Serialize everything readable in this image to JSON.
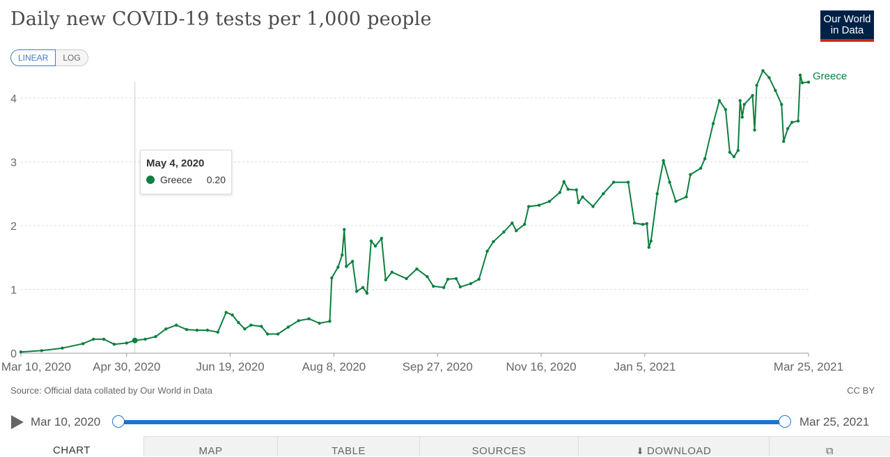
{
  "header": {
    "title": "Daily new COVID-19 tests per 1,000 people",
    "logo_line1": "Our World",
    "logo_line2": "in Data"
  },
  "scale_toggle": {
    "linear_label": "LINEAR",
    "log_label": "LOG",
    "selected": "LINEAR"
  },
  "tooltip": {
    "date": "May 4, 2020",
    "series": "Greece",
    "value": "0.20"
  },
  "footer": {
    "source": "Source: Official data collated by Our World in Data",
    "license": "CC BY"
  },
  "timeline": {
    "start_label": "Mar 10, 2020",
    "end_label": "Mar 25, 2021"
  },
  "tabs": {
    "chart": "CHART",
    "map": "MAP",
    "table": "TABLE",
    "sources": "SOURCES",
    "download": "DOWNLOAD"
  },
  "icons": {
    "play": "play-icon",
    "download": "download-icon",
    "share": "share-icon"
  },
  "colors": {
    "series": "#0d7f3f",
    "accent": "#1a73d1",
    "logo_bg": "#002147",
    "logo_bar": "#ce261e"
  },
  "chart_data": {
    "type": "line",
    "title": "Daily new COVID-19 tests per 1,000 people",
    "xlabel": "",
    "ylabel": "",
    "x_domain": [
      "2020-03-10",
      "2021-03-25"
    ],
    "ylim": [
      0,
      4.5
    ],
    "yticks": [
      0,
      1,
      2,
      3,
      4
    ],
    "xticks": [
      {
        "date": "2020-03-10",
        "label": "Mar 10, 2020"
      },
      {
        "date": "2020-04-30",
        "label": "Apr 30, 2020"
      },
      {
        "date": "2020-06-19",
        "label": "Jun 19, 2020"
      },
      {
        "date": "2020-08-08",
        "label": "Aug 8, 2020"
      },
      {
        "date": "2020-09-27",
        "label": "Sep 27, 2020"
      },
      {
        "date": "2020-11-16",
        "label": "Nov 16, 2020"
      },
      {
        "date": "2021-01-05",
        "label": "Jan 5, 2021"
      },
      {
        "date": "2021-03-25",
        "label": "Mar 25, 2021"
      }
    ],
    "grid": "horizontal-dashed",
    "hover_date": "2020-05-04",
    "series": [
      {
        "name": "Greece",
        "points": [
          [
            "2020-03-10",
            0.02
          ],
          [
            "2020-03-20",
            0.04
          ],
          [
            "2020-03-30",
            0.08
          ],
          [
            "2020-04-09",
            0.15
          ],
          [
            "2020-04-14",
            0.22
          ],
          [
            "2020-04-19",
            0.22
          ],
          [
            "2020-04-24",
            0.14
          ],
          [
            "2020-04-30",
            0.16
          ],
          [
            "2020-05-04",
            0.2
          ],
          [
            "2020-05-09",
            0.22
          ],
          [
            "2020-05-14",
            0.26
          ],
          [
            "2020-05-19",
            0.38
          ],
          [
            "2020-05-24",
            0.44
          ],
          [
            "2020-05-29",
            0.37
          ],
          [
            "2020-06-03",
            0.36
          ],
          [
            "2020-06-08",
            0.36
          ],
          [
            "2020-06-13",
            0.33
          ],
          [
            "2020-06-17",
            0.64
          ],
          [
            "2020-06-20",
            0.6
          ],
          [
            "2020-06-23",
            0.48
          ],
          [
            "2020-06-26",
            0.38
          ],
          [
            "2020-06-29",
            0.44
          ],
          [
            "2020-07-04",
            0.42
          ],
          [
            "2020-07-07",
            0.3
          ],
          [
            "2020-07-12",
            0.3
          ],
          [
            "2020-07-17",
            0.41
          ],
          [
            "2020-07-22",
            0.51
          ],
          [
            "2020-07-27",
            0.54
          ],
          [
            "2020-08-01",
            0.47
          ],
          [
            "2020-08-06",
            0.5
          ],
          [
            "2020-08-07",
            1.18
          ],
          [
            "2020-08-10",
            1.35
          ],
          [
            "2020-08-12",
            1.54
          ],
          [
            "2020-08-13",
            1.94
          ],
          [
            "2020-08-14",
            1.36
          ],
          [
            "2020-08-17",
            1.44
          ],
          [
            "2020-08-19",
            0.97
          ],
          [
            "2020-08-22",
            1.03
          ],
          [
            "2020-08-24",
            0.94
          ],
          [
            "2020-08-26",
            1.76
          ],
          [
            "2020-08-28",
            1.68
          ],
          [
            "2020-08-31",
            1.8
          ],
          [
            "2020-09-02",
            1.15
          ],
          [
            "2020-09-05",
            1.27
          ],
          [
            "2020-09-12",
            1.17
          ],
          [
            "2020-09-17",
            1.32
          ],
          [
            "2020-09-22",
            1.2
          ],
          [
            "2020-09-25",
            1.05
          ],
          [
            "2020-09-30",
            1.03
          ],
          [
            "2020-10-02",
            1.16
          ],
          [
            "2020-10-06",
            1.17
          ],
          [
            "2020-10-08",
            1.04
          ],
          [
            "2020-10-13",
            1.09
          ],
          [
            "2020-10-17",
            1.16
          ],
          [
            "2020-10-21",
            1.6
          ],
          [
            "2020-10-24",
            1.75
          ],
          [
            "2020-10-29",
            1.9
          ],
          [
            "2020-11-02",
            2.04
          ],
          [
            "2020-11-04",
            1.92
          ],
          [
            "2020-11-08",
            2.02
          ],
          [
            "2020-11-10",
            2.3
          ],
          [
            "2020-11-15",
            2.32
          ],
          [
            "2020-11-20",
            2.38
          ],
          [
            "2020-11-25",
            2.52
          ],
          [
            "2020-11-27",
            2.69
          ],
          [
            "2020-11-29",
            2.57
          ],
          [
            "2020-12-03",
            2.56
          ],
          [
            "2020-12-04",
            2.36
          ],
          [
            "2020-12-06",
            2.45
          ],
          [
            "2020-12-11",
            2.3
          ],
          [
            "2020-12-16",
            2.5
          ],
          [
            "2020-12-21",
            2.68
          ],
          [
            "2020-12-28",
            2.68
          ],
          [
            "2020-12-31",
            2.04
          ],
          [
            "2021-01-04",
            2.02
          ],
          [
            "2021-01-06",
            2.03
          ],
          [
            "2021-01-07",
            1.66
          ],
          [
            "2021-01-08",
            1.76
          ],
          [
            "2021-01-11",
            2.5
          ],
          [
            "2021-01-14",
            3.02
          ],
          [
            "2021-01-17",
            2.68
          ],
          [
            "2021-01-20",
            2.38
          ],
          [
            "2021-01-25",
            2.45
          ],
          [
            "2021-01-27",
            2.8
          ],
          [
            "2021-02-01",
            2.9
          ],
          [
            "2021-02-03",
            3.05
          ],
          [
            "2021-02-07",
            3.6
          ],
          [
            "2021-02-10",
            3.96
          ],
          [
            "2021-02-13",
            3.82
          ],
          [
            "2021-02-15",
            3.15
          ],
          [
            "2021-02-17",
            3.08
          ],
          [
            "2021-02-19",
            3.18
          ],
          [
            "2021-02-20",
            3.96
          ],
          [
            "2021-02-21",
            3.7
          ],
          [
            "2021-02-22",
            3.9
          ],
          [
            "2021-02-26",
            4.04
          ],
          [
            "2021-02-27",
            3.5
          ],
          [
            "2021-02-28",
            4.2
          ],
          [
            "2021-03-03",
            4.43
          ],
          [
            "2021-03-06",
            4.32
          ],
          [
            "2021-03-09",
            4.12
          ],
          [
            "2021-03-12",
            3.9
          ],
          [
            "2021-03-13",
            3.32
          ],
          [
            "2021-03-15",
            3.52
          ],
          [
            "2021-03-17",
            3.62
          ],
          [
            "2021-03-20",
            3.64
          ],
          [
            "2021-03-21",
            4.36
          ],
          [
            "2021-03-22",
            4.24
          ],
          [
            "2021-03-25",
            4.25
          ]
        ]
      }
    ]
  }
}
